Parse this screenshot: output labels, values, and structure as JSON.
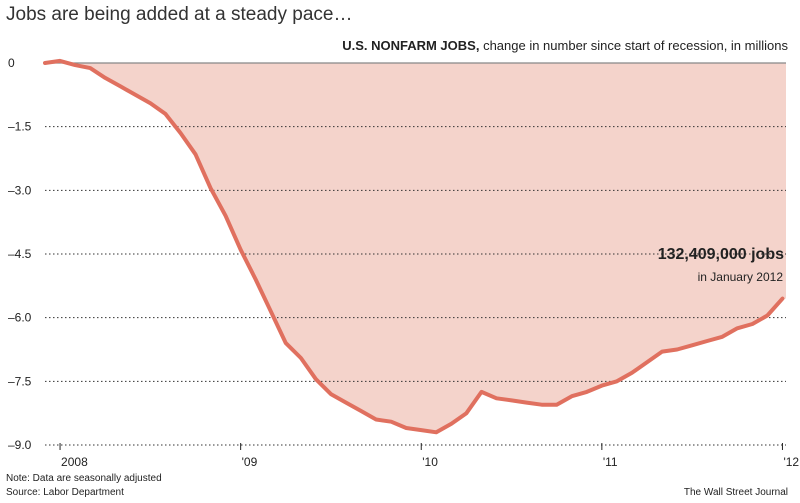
{
  "headline": "Jobs are being added at a steady pace…",
  "subhead": {
    "bold": "U.S. NONFARM JOBS,",
    "rest": " change in number since start of recession, in millions"
  },
  "callout": {
    "value": "132,409,000 jobs",
    "when": "in January 2012"
  },
  "footer": {
    "note": "Note: Data are seasonally adjusted",
    "source": "Source: Labor Department",
    "publisher": "The Wall Street Journal"
  },
  "colors": {
    "line": "#e0705f",
    "fill": "#f4d3cb",
    "zero_line": "#888888",
    "grid": "#333333"
  },
  "chart_data": {
    "type": "area",
    "title": "U.S. NONFARM JOBS, change in number since start of recession, in millions",
    "x_unit": "months since Dec 2007",
    "ylim": [
      -9.0,
      0
    ],
    "yticks": [
      0,
      -1.5,
      -3.0,
      -4.5,
      -6.0,
      -7.5,
      -9.0
    ],
    "ytick_labels": [
      "0",
      "–1.5",
      "–3.0",
      "–4.5",
      "–6.0",
      "–7.5",
      "–9.0"
    ],
    "xticks": [
      {
        "label": "2008",
        "date": "2008-01"
      },
      {
        "label": "'09",
        "date": "2009-01"
      },
      {
        "label": "'10",
        "date": "2010-01"
      },
      {
        "label": "'11",
        "date": "2011-01"
      },
      {
        "label": "'12",
        "date": "2012-01"
      }
    ],
    "grid": "horizontal dotted",
    "series": [
      {
        "dates": [
          "2007-12",
          "2008-01",
          "2008-02",
          "2008-03",
          "2008-04",
          "2008-05",
          "2008-06",
          "2008-07",
          "2008-08",
          "2008-09",
          "2008-10",
          "2008-11",
          "2008-12",
          "2009-01",
          "2009-02",
          "2009-03",
          "2009-04",
          "2009-05",
          "2009-06",
          "2009-07",
          "2009-08",
          "2009-09",
          "2009-10",
          "2009-11",
          "2009-12",
          "2010-01",
          "2010-02",
          "2010-03",
          "2010-04",
          "2010-05",
          "2010-06",
          "2010-07",
          "2010-08",
          "2010-09",
          "2010-10",
          "2010-11",
          "2010-12",
          "2011-01",
          "2011-02",
          "2011-03",
          "2011-04",
          "2011-05",
          "2011-06",
          "2011-07",
          "2011-08",
          "2011-09",
          "2011-10",
          "2011-11",
          "2011-12",
          "2012-01"
        ],
        "values": [
          0,
          0.05,
          -0.05,
          -0.12,
          -0.35,
          -0.55,
          -0.75,
          -0.95,
          -1.2,
          -1.65,
          -2.15,
          -2.95,
          -3.6,
          -4.4,
          -5.1,
          -5.85,
          -6.6,
          -6.95,
          -7.45,
          -7.8,
          -8.0,
          -8.2,
          -8.4,
          -8.45,
          -8.6,
          -8.65,
          -8.7,
          -8.5,
          -8.25,
          -7.75,
          -7.9,
          -7.95,
          -8.0,
          -8.05,
          -8.05,
          -7.85,
          -7.75,
          -7.6,
          -7.5,
          -7.3,
          -7.05,
          -6.8,
          -6.75,
          -6.65,
          -6.55,
          -6.45,
          -6.25,
          -6.15,
          -5.95,
          -5.55
        ]
      }
    ]
  }
}
